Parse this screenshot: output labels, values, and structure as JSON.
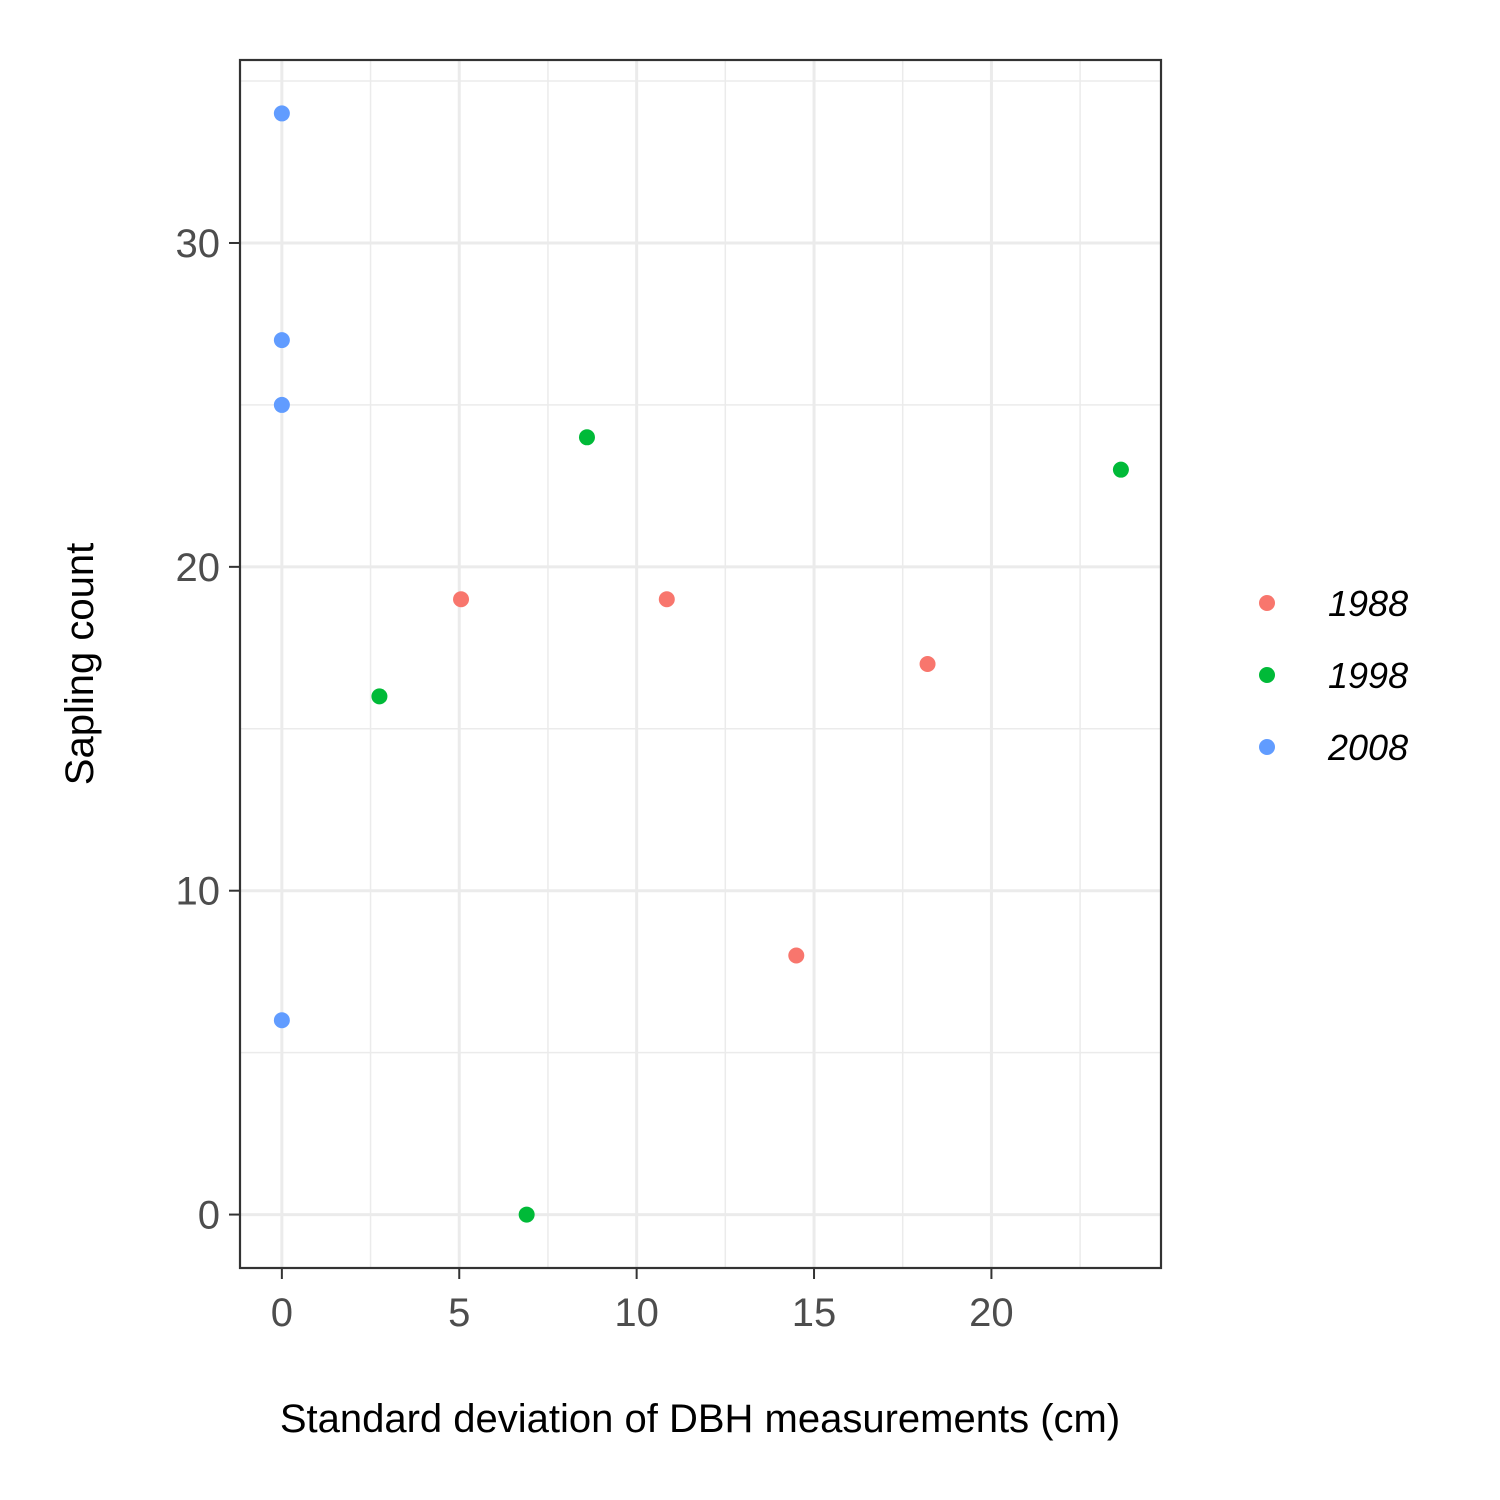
{
  "chart_data": {
    "type": "scatter",
    "title": "",
    "xlabel": "Standard deviation of DBH measurements (cm)",
    "ylabel": "Sapling count",
    "xlim": [
      -1.18,
      24.78
    ],
    "ylim": [
      -1.65,
      35.65
    ],
    "x_ticks": [
      0,
      5,
      10,
      15,
      20
    ],
    "x_tick_labels": [
      "0",
      "5",
      "10",
      "15",
      "20"
    ],
    "x_minor_ticks": [
      2.5,
      7.5,
      12.5,
      17.5,
      22.5
    ],
    "y_ticks": [
      0,
      10,
      20,
      30
    ],
    "y_tick_labels": [
      "0",
      "10",
      "20",
      "30"
    ],
    "y_minor_ticks": [
      5,
      15,
      25,
      35
    ],
    "grid": true,
    "legend_position": "right",
    "series": [
      {
        "name": "1988",
        "color": "#F8766D",
        "points": [
          {
            "x": 5.05,
            "y": 19
          },
          {
            "x": 10.85,
            "y": 19
          },
          {
            "x": 14.5,
            "y": 8
          },
          {
            "x": 18.2,
            "y": 17
          }
        ]
      },
      {
        "name": "1998",
        "color": "#00BA38",
        "points": [
          {
            "x": 2.75,
            "y": 16
          },
          {
            "x": 6.9,
            "y": 0
          },
          {
            "x": 8.6,
            "y": 24
          },
          {
            "x": 23.65,
            "y": 23
          }
        ]
      },
      {
        "name": "2008",
        "color": "#619CFF",
        "points": [
          {
            "x": 0,
            "y": 34
          },
          {
            "x": 0,
            "y": 27
          },
          {
            "x": 0,
            "y": 25
          },
          {
            "x": 0,
            "y": 6
          }
        ]
      }
    ]
  }
}
